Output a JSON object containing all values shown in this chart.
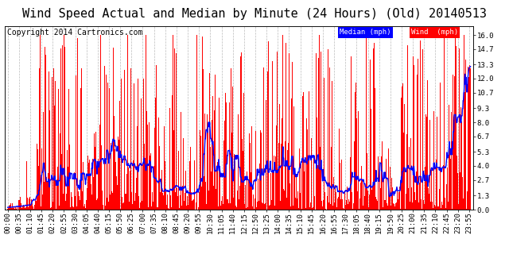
{
  "title": "Wind Speed Actual and Median by Minute (24 Hours) (Old) 20140513",
  "copyright": "Copyright 2014 Cartronics.com",
  "ylabel_right_ticks": [
    0.0,
    1.3,
    2.7,
    4.0,
    5.3,
    6.7,
    8.0,
    9.3,
    10.7,
    12.0,
    13.3,
    14.7,
    16.0
  ],
  "ylim": [
    0.0,
    16.8
  ],
  "bg_color": "#ffffff",
  "plot_bg_color": "#ffffff",
  "grid_color": "#bbbbbb",
  "bar_color": "#ff0000",
  "median_color": "#0000ff",
  "legend_median_bg": "#0000ff",
  "legend_wind_bg": "#ff0000",
  "title_fontsize": 11,
  "copyright_fontsize": 7,
  "tick_fontsize": 6.5,
  "n_minutes": 1440,
  "x_tick_interval": 35,
  "seed": 123
}
